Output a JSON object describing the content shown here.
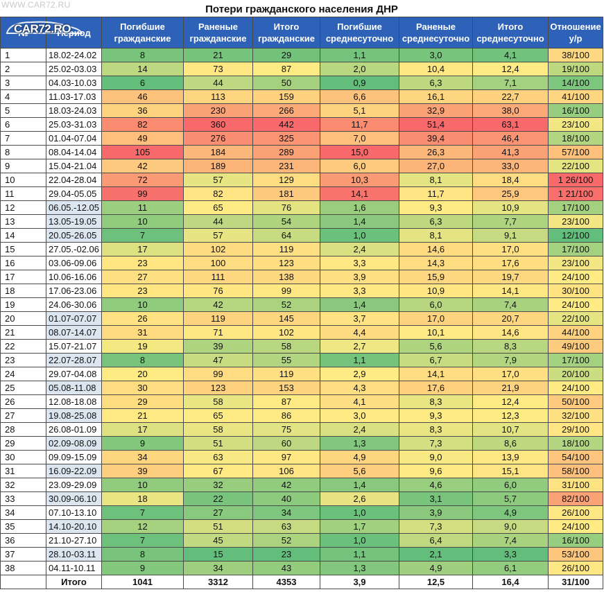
{
  "watermark": "WWW.CAR72.RU",
  "logo_text": "CAR72.RO",
  "title": "Потери гражданского населения ДНР",
  "headers": {
    "num": "№",
    "period": "Период",
    "killed": "Погибшие гражданские",
    "wounded": "Раненые гражданские",
    "total": "Итого гражданские",
    "killed_daily": "Погибшие среднесуточно",
    "wounded_daily": "Раненые среднесуточно",
    "total_daily": "Итого среднесуточно",
    "ratio": "Отношение у/р"
  },
  "rows": [
    {
      "num": "1",
      "period": "18.02-24.02",
      "killed": "8",
      "wounded": "21",
      "total": "29",
      "killed_daily": "1,1",
      "wounded_daily": "3,0",
      "total_daily": "4,1",
      "ratio": "38/100"
    },
    {
      "num": "2",
      "period": "25.02-03.03",
      "killed": "14",
      "wounded": "73",
      "total": "87",
      "killed_daily": "2,0",
      "wounded_daily": "10,4",
      "total_daily": "12,4",
      "ratio": "19/100"
    },
    {
      "num": "3",
      "period": "04.03-10.03",
      "killed": "6",
      "wounded": "44",
      "total": "50",
      "killed_daily": "0,9",
      "wounded_daily": "6,3",
      "total_daily": "7,1",
      "ratio": "14/100"
    },
    {
      "num": "4",
      "period": "11.03-17.03",
      "killed": "46",
      "wounded": "113",
      "total": "159",
      "killed_daily": "6,6",
      "wounded_daily": "16,1",
      "total_daily": "22,7",
      "ratio": "41/100"
    },
    {
      "num": "5",
      "period": "18.03-24.03",
      "killed": "36",
      "wounded": "230",
      "total": "266",
      "killed_daily": "5,1",
      "wounded_daily": "32,9",
      "total_daily": "38,0",
      "ratio": "16/100"
    },
    {
      "num": "6",
      "period": "25.03-31.03",
      "killed": "82",
      "wounded": "360",
      "total": "442",
      "killed_daily": "11,7",
      "wounded_daily": "51,4",
      "total_daily": "63,1",
      "ratio": "23/100"
    },
    {
      "num": "7",
      "period": "01.04-07.04",
      "killed": "49",
      "wounded": "276",
      "total": "325",
      "killed_daily": "7,0",
      "wounded_daily": "39,4",
      "total_daily": "46,4",
      "ratio": "18/100"
    },
    {
      "num": "8",
      "period": "08.04-14.04",
      "killed": "105",
      "wounded": "184",
      "total": "289",
      "killed_daily": "15,0",
      "wounded_daily": "26,3",
      "total_daily": "41,3",
      "ratio": "57/100"
    },
    {
      "num": "9",
      "period": "15.04-21.04",
      "killed": "42",
      "wounded": "189",
      "total": "231",
      "killed_daily": "6,0",
      "wounded_daily": "27,0",
      "total_daily": "33,0",
      "ratio": "22/100"
    },
    {
      "num": "10",
      "period": "22.04-28.04",
      "killed": "72",
      "wounded": "57",
      "total": "129",
      "killed_daily": "10,3",
      "wounded_daily": "8,1",
      "total_daily": "18,4",
      "ratio": "1 26/100"
    },
    {
      "num": "11",
      "period": "29.04-05.05",
      "killed": "99",
      "wounded": "82",
      "total": "181",
      "killed_daily": "14,1",
      "wounded_daily": "11,7",
      "total_daily": "25,9",
      "ratio": "1 21/100"
    },
    {
      "num": "12",
      "period": "06.05.-12.05",
      "killed": "11",
      "wounded": "65",
      "total": "76",
      "killed_daily": "1,6",
      "wounded_daily": "9,3",
      "total_daily": "10,9",
      "ratio": "17/100"
    },
    {
      "num": "13",
      "period": "13.05-19.05",
      "killed": "10",
      "wounded": "44",
      "total": "54",
      "killed_daily": "1,4",
      "wounded_daily": "6,3",
      "total_daily": "7,7",
      "ratio": "23/100"
    },
    {
      "num": "14",
      "period": "20.05-26.05",
      "killed": "7",
      "wounded": "57",
      "total": "64",
      "killed_daily": "1,0",
      "wounded_daily": "8,1",
      "total_daily": "9,1",
      "ratio": "12/100"
    },
    {
      "num": "15",
      "period": "27.05.-02.06",
      "killed": "17",
      "wounded": "102",
      "total": "119",
      "killed_daily": "2,4",
      "wounded_daily": "14,6",
      "total_daily": "17,0",
      "ratio": "17/100"
    },
    {
      "num": "16",
      "period": "03.06-09.06",
      "killed": "23",
      "wounded": "100",
      "total": "123",
      "killed_daily": "3,3",
      "wounded_daily": "14,3",
      "total_daily": "17,6",
      "ratio": "23/100"
    },
    {
      "num": "17",
      "period": "10.06-16.06",
      "killed": "27",
      "wounded": "111",
      "total": "138",
      "killed_daily": "3,9",
      "wounded_daily": "15,9",
      "total_daily": "19,7",
      "ratio": "24/100"
    },
    {
      "num": "18",
      "period": "17.06-23.06",
      "killed": "23",
      "wounded": "76",
      "total": "99",
      "killed_daily": "3,3",
      "wounded_daily": "10,9",
      "total_daily": "14,1",
      "ratio": "30/100"
    },
    {
      "num": "19",
      "period": "24.06-30.06",
      "killed": "10",
      "wounded": "42",
      "total": "52",
      "killed_daily": "1,4",
      "wounded_daily": "6,0",
      "total_daily": "7,4",
      "ratio": "24/100"
    },
    {
      "num": "20",
      "period": "01.07-07.07",
      "killed": "26",
      "wounded": "119",
      "total": "145",
      "killed_daily": "3,7",
      "wounded_daily": "17,0",
      "total_daily": "20,7",
      "ratio": "22/100"
    },
    {
      "num": "21",
      "period": "08.07-14.07",
      "killed": "31",
      "wounded": "71",
      "total": "102",
      "killed_daily": "4,4",
      "wounded_daily": "10,1",
      "total_daily": "14,6",
      "ratio": "44/100"
    },
    {
      "num": "22",
      "period": "15.07-21.07",
      "killed": "19",
      "wounded": "39",
      "total": "58",
      "killed_daily": "2,7",
      "wounded_daily": "5,6",
      "total_daily": "8,3",
      "ratio": "49/100"
    },
    {
      "num": "23",
      "period": "22.07-28.07",
      "killed": "8",
      "wounded": "47",
      "total": "55",
      "killed_daily": "1,1",
      "wounded_daily": "6,7",
      "total_daily": "7,9",
      "ratio": "17/100"
    },
    {
      "num": "24",
      "period": "29.07-04.08",
      "killed": "20",
      "wounded": "99",
      "total": "119",
      "killed_daily": "2,9",
      "wounded_daily": "14,1",
      "total_daily": "17,0",
      "ratio": "20/100"
    },
    {
      "num": "25",
      "period": "05.08-11.08",
      "killed": "30",
      "wounded": "123",
      "total": "153",
      "killed_daily": "4,3",
      "wounded_daily": "17,6",
      "total_daily": "21,9",
      "ratio": "24/100"
    },
    {
      "num": "26",
      "period": "12.08-18.08",
      "killed": "29",
      "wounded": "58",
      "total": "87",
      "killed_daily": "4,1",
      "wounded_daily": "8,3",
      "total_daily": "12,4",
      "ratio": "50/100"
    },
    {
      "num": "27",
      "period": "19.08-25.08",
      "killed": "21",
      "wounded": "65",
      "total": "86",
      "killed_daily": "3,0",
      "wounded_daily": "9,3",
      "total_daily": "12,3",
      "ratio": "32/100"
    },
    {
      "num": "28",
      "period": "26.08-01.09",
      "killed": "17",
      "wounded": "58",
      "total": "75",
      "killed_daily": "2,4",
      "wounded_daily": "8,3",
      "total_daily": "10,7",
      "ratio": "29/100"
    },
    {
      "num": "29",
      "period": "02.09-08.09",
      "killed": "9",
      "wounded": "51",
      "total": "60",
      "killed_daily": "1,3",
      "wounded_daily": "7,3",
      "total_daily": "8,6",
      "ratio": "18/100"
    },
    {
      "num": "30",
      "period": "09.09-15.09",
      "killed": "34",
      "wounded": "63",
      "total": "97",
      "killed_daily": "4,9",
      "wounded_daily": "9,0",
      "total_daily": "13,9",
      "ratio": "54/100"
    },
    {
      "num": "31",
      "period": "16.09-22.09",
      "killed": "39",
      "wounded": "67",
      "total": "106",
      "killed_daily": "5,6",
      "wounded_daily": "9,6",
      "total_daily": "15,1",
      "ratio": "58/100"
    },
    {
      "num": "32",
      "period": "23.09-29.09",
      "killed": "10",
      "wounded": "32",
      "total": "42",
      "killed_daily": "1,4",
      "wounded_daily": "4,6",
      "total_daily": "6,0",
      "ratio": "31/100"
    },
    {
      "num": "33",
      "period": "30.09-06.10",
      "killed": "18",
      "wounded": "22",
      "total": "40",
      "killed_daily": "2,6",
      "wounded_daily": "3,1",
      "total_daily": "5,7",
      "ratio": "82/100"
    },
    {
      "num": "34",
      "period": "07.10-13.10",
      "killed": "7",
      "wounded": "27",
      "total": "34",
      "killed_daily": "1,0",
      "wounded_daily": "3,9",
      "total_daily": "4,9",
      "ratio": "26/100"
    },
    {
      "num": "35",
      "period": "14.10-20.10",
      "killed": "12",
      "wounded": "51",
      "total": "63",
      "killed_daily": "1,7",
      "wounded_daily": "7,3",
      "total_daily": "9,0",
      "ratio": "24/100"
    },
    {
      "num": "36",
      "period": "21.10-27.10",
      "killed": "7",
      "wounded": "45",
      "total": "52",
      "killed_daily": "1,0",
      "wounded_daily": "6,4",
      "total_daily": "7,4",
      "ratio": "16/100"
    },
    {
      "num": "37",
      "period": "28.10-03.11",
      "killed": "8",
      "wounded": "15",
      "total": "23",
      "killed_daily": "1,1",
      "wounded_daily": "2,1",
      "total_daily": "3,3",
      "ratio": "53/100"
    },
    {
      "num": "38",
      "period": "04.11-10.11",
      "killed": "9",
      "wounded": "34",
      "total": "43",
      "killed_daily": "1,3",
      "wounded_daily": "4,9",
      "total_daily": "6,1",
      "ratio": "26/100"
    }
  ],
  "totals": {
    "label": "Итого",
    "killed": "1041",
    "wounded": "3312",
    "total": "4353",
    "killed_daily": "3,9",
    "wounded_daily": "12,5",
    "total_daily": "16,4",
    "ratio": "31/100"
  },
  "colors": {
    "header_bg": "#2e62b8",
    "scale_low": "#63be7b",
    "scale_mid": "#ffeb84",
    "scale_high": "#f8696b",
    "period_shade": "#dce6f1"
  }
}
